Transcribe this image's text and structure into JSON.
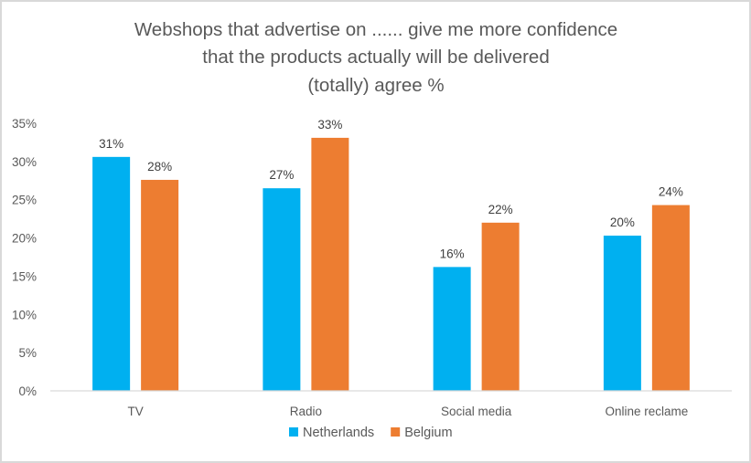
{
  "chart_data": {
    "type": "bar",
    "title_lines": [
      "Webshops that advertise on ...... give me more confidence",
      "that the products actually will be delivered",
      "(totally) agree %"
    ],
    "xlabel": "",
    "ylabel": "",
    "categories": [
      "TV",
      "Radio",
      "Social media",
      "Online reclame"
    ],
    "series": [
      {
        "name": "Netherlands",
        "color": "#00B0F0",
        "values": [
          30.6,
          26.5,
          16.2,
          20.3
        ],
        "labels": [
          "31%",
          "27%",
          "16%",
          "20%"
        ]
      },
      {
        "name": "Belgium",
        "color": "#ED7D31",
        "values": [
          27.6,
          33.1,
          22.0,
          24.3
        ],
        "labels": [
          "28%",
          "33%",
          "22%",
          "24%"
        ]
      }
    ],
    "ylim": [
      0,
      35
    ],
    "yticks": [
      0,
      5,
      10,
      15,
      20,
      25,
      30,
      35
    ],
    "ytick_labels": [
      "0%",
      "5%",
      "10%",
      "15%",
      "20%",
      "25%",
      "30%",
      "35%"
    ],
    "grid": false,
    "legend_position": "bottom"
  }
}
